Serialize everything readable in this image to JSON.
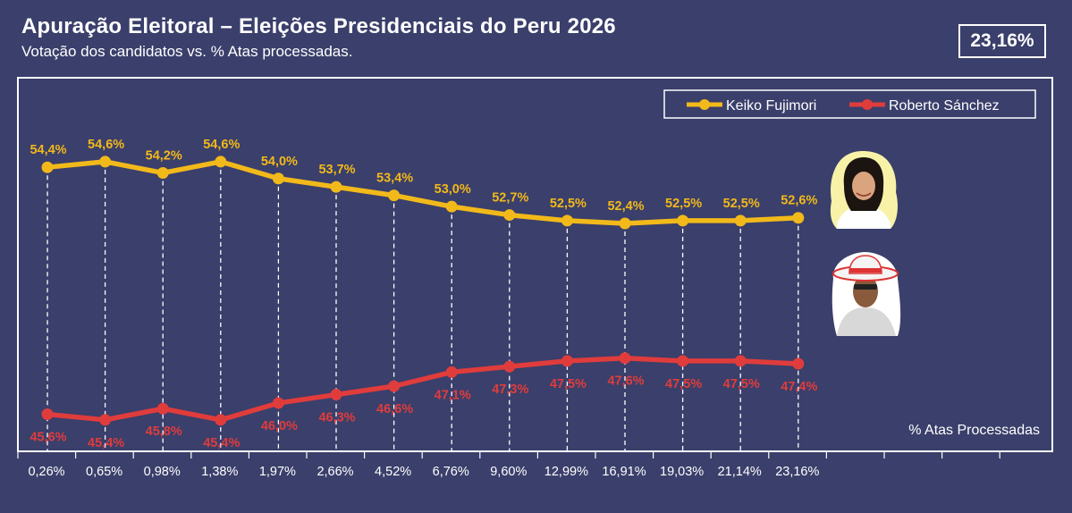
{
  "header": {
    "title": "Apuração Eleitoral – Eleições Presidenciais do Peru 2026",
    "subtitle": "Votação dos candidatos vs. % Atas processadas.",
    "badge": "23,16%"
  },
  "chart_data": {
    "type": "line",
    "xlabel": "% Atas Processadas",
    "categories": [
      "0,26%",
      "0,65%",
      "0,98%",
      "1,38%",
      "1,97%",
      "2,66%",
      "4,52%",
      "6,76%",
      "9,60%",
      "12,99%",
      "16,91%",
      "19,03%",
      "21,14%",
      "23,16%"
    ],
    "series": [
      {
        "name": "Keiko Fujimori",
        "color": "#f2b91a",
        "values": [
          54.4,
          54.6,
          54.2,
          54.6,
          54.0,
          53.7,
          53.4,
          53.0,
          52.7,
          52.5,
          52.4,
          52.5,
          52.5,
          52.6
        ],
        "labels": [
          "54,4%",
          "54,6%",
          "54,2%",
          "54,6%",
          "54,0%",
          "53,7%",
          "53,4%",
          "53,0%",
          "52,7%",
          "52,5%",
          "52,4%",
          "52,5%",
          "52,5%",
          "52,6%"
        ]
      },
      {
        "name": "Roberto Sánchez",
        "color": "#e03c3c",
        "values": [
          45.6,
          45.4,
          45.8,
          45.4,
          46.0,
          46.3,
          46.6,
          47.1,
          47.3,
          47.5,
          47.6,
          47.5,
          47.5,
          47.4
        ],
        "labels": [
          "45,6%",
          "45,4%",
          "45,8%",
          "45,4%",
          "46,0%",
          "46,3%",
          "46,6%",
          "47,1%",
          "47,3%",
          "47,5%",
          "47,6%",
          "47,5%",
          "47,5%",
          "47,4%"
        ]
      }
    ],
    "grid": "vertical dashed",
    "legend_position": "top-right"
  }
}
